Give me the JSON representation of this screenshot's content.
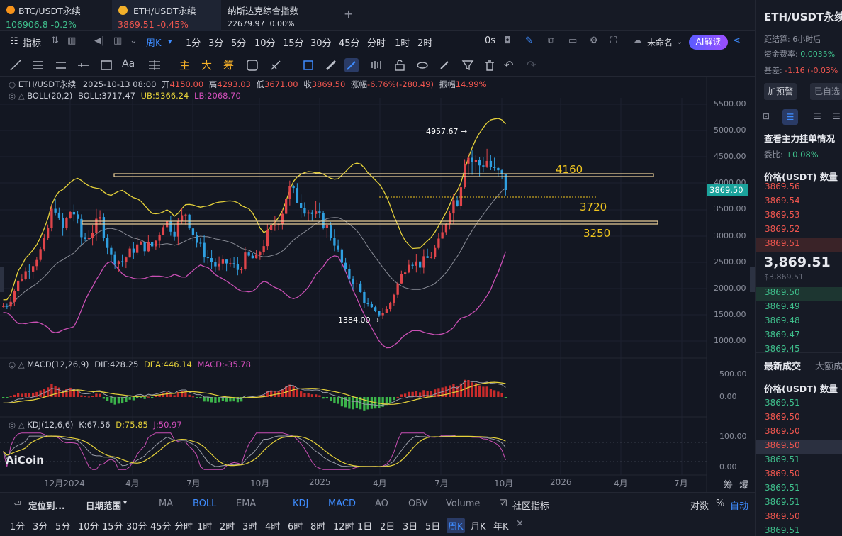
{
  "tabs": [
    {
      "name": "BTC/USDT永续",
      "price": "106906.8",
      "change": "-0.2%"
    },
    {
      "name": "ETH/USDT永续",
      "price": "3869.51",
      "change": "-0.45%"
    },
    {
      "name": "纳斯达克综合指数",
      "price": "22679.97",
      "change": "0.00%"
    }
  ],
  "new_tab": "+",
  "toolbar": {
    "indicator": "指标",
    "period_selected": "周K",
    "periods": [
      "1分",
      "3分",
      "5分",
      "10分",
      "15分",
      "30分",
      "45分",
      "分时",
      "1时",
      "2时"
    ],
    "seconds": "0s",
    "layout_name": "未命名",
    "ai": "AI解读"
  },
  "draw_tools": {
    "main": "主",
    "big": "大",
    "chip": "筹"
  },
  "info": {
    "symbol": "ETH/USDT永续",
    "date": "2025-10-13 08:00",
    "open_l": "开",
    "open": "4150.00",
    "high_l": "高",
    "high": "4293.03",
    "low_l": "低",
    "low": "3671.00",
    "close_l": "收",
    "close": "3869.50",
    "chg_l": "涨幅",
    "chg": "-6.76%(-280.49)",
    "amp_l": "振幅",
    "amp": "14.99%"
  },
  "boll": {
    "label": "BOLL(20,2)",
    "mid": "BOLL:3717.47",
    "ub": "UB:5366.24",
    "lb": "LB:2068.70"
  },
  "macd": {
    "label": "MACD(12,26,9)",
    "dif": "DIF:428.25",
    "dea": "DEA:446.14",
    "macd": "MACD:-35.78"
  },
  "kdj": {
    "label": "KDJ(12,6,6)",
    "k": "K:67.56",
    "d": "D:75.85",
    "j": "J:50.97"
  },
  "annotations": {
    "high": "4957.67",
    "low": "1384.00",
    "l1": "4160",
    "l2": "3720",
    "l3": "3250"
  },
  "price_axis": [
    "5500.00",
    "5000.00",
    "4500.00",
    "4000.00",
    "3500.00",
    "3000.00",
    "2500.00",
    "2000.00",
    "1500.00",
    "1000.00"
  ],
  "current_price": "3869.50",
  "macd_axis": [
    "500.00",
    "0.00"
  ],
  "kdj_axis": [
    "100.00",
    "0.00"
  ],
  "time_axis": [
    "12月2024",
    "4月",
    "7月",
    "10月",
    "2025",
    "4月",
    "7月",
    "10月",
    "2026",
    "4月",
    "7月"
  ],
  "axis_icons": [
    "筹",
    "爆"
  ],
  "logo": "AiCoin",
  "bottom": {
    "locate": "定位到...",
    "range": "日期范围",
    "ind": [
      "MA",
      "BOLL",
      "EMA",
      "KDJ",
      "MACD",
      "AO",
      "OBV",
      "Volume"
    ],
    "community": "社区指标",
    "log": "对数",
    "pct": "%",
    "auto": "自动",
    "periods": [
      "1分",
      "3分",
      "5分",
      "10分",
      "15分",
      "30分",
      "45分",
      "分时",
      "1时",
      "2时",
      "3时",
      "4时",
      "6时",
      "8时",
      "12时",
      "1日",
      "2日",
      "3日",
      "5日",
      "周K",
      "月K",
      "年K"
    ],
    "close": "×"
  },
  "right": {
    "title": "ETH/USDT永续",
    "settle_l": "距结算:",
    "settle": "6小时后",
    "fee_l": "资金费率:",
    "fee": "0.0035%",
    "basis_l": "基差:",
    "basis": "-1.16 (-0.03%",
    "add_alert": "加预警",
    "added": "已自选",
    "watch": "查看主力挂单情况",
    "ratio_l": "委比:",
    "ratio": "+0.08%",
    "header_price": "价格(USDT)",
    "header_qty": "数量",
    "asks": [
      "3869.56",
      "3869.54",
      "3869.53",
      "3869.52",
      "3869.51"
    ],
    "last": "3,869.51",
    "last_sub": "$3,869.51",
    "bids": [
      "3869.50",
      "3869.49",
      "3869.48",
      "3869.47",
      "3869.45"
    ],
    "trades_tab": "最新成交",
    "big_tab": "大额成",
    "trades": [
      {
        "p": "3869.51",
        "side": "buy"
      },
      {
        "p": "3869.50",
        "side": "sell"
      },
      {
        "p": "3869.50",
        "side": "sell"
      },
      {
        "p": "3869.50",
        "side": "sell"
      },
      {
        "p": "3869.51",
        "side": "buy"
      },
      {
        "p": "3869.50",
        "side": "sell"
      },
      {
        "p": "3869.51",
        "side": "buy"
      },
      {
        "p": "3869.51",
        "side": "buy"
      },
      {
        "p": "3869.50",
        "side": "sell"
      },
      {
        "p": "3869.51",
        "side": "buy"
      }
    ]
  },
  "colors": {
    "up": "#e0454a",
    "down": "#2f9fe0",
    "boll_ub": "#e6d23a",
    "boll_lb": "#c94fb4",
    "macd_pos": "#c92b2b",
    "macd_neg": "#3bb34a",
    "accent": "#3e8cff"
  }
}
